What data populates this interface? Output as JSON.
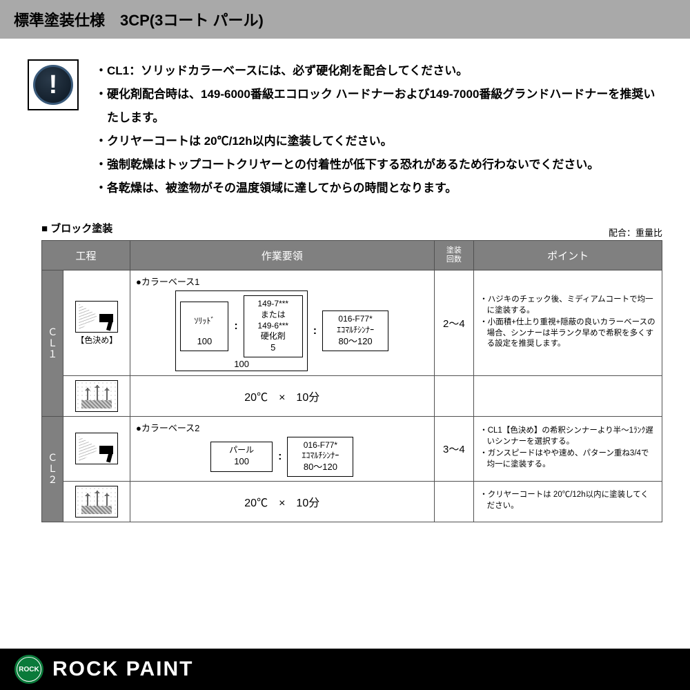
{
  "title": "標準塗装仕様　3CP(3コート パール)",
  "notice_icon_glyph": "!",
  "notices": [
    "・CL1：ソリッドカラーベースには、必ず硬化剤を配合してください。",
    "・硬化剤配合時は、149-6000番級エコロック ハードナーおよび149-7000番級グランドハードナーを推奨いたします。",
    "・クリヤーコートは 20℃/12h以内に塗装してください。",
    "・強制乾燥はトップコートクリヤーとの付着性が低下する恐れがあるため行わないでください。",
    "・各乾燥は、被塗物がその温度領域に達してからの時間となります。"
  ],
  "section_title": "■ ブロック塗装",
  "ratio_note": "配合：重量比",
  "headers": {
    "process": "工程",
    "work": "作業要領",
    "count_l1": "塗装",
    "count_l2": "回数",
    "point": "ポイント"
  },
  "cl1": {
    "label": "ＣＬ１",
    "caption": "【色決め】",
    "mix_title": "●カラーベース1",
    "solid_label": "ｿﾘｯﾄﾞ",
    "solid_val": "100",
    "hardener_l1": "149-7***",
    "hardener_l2": "または",
    "hardener_l3": "149-6***",
    "hardener_l4": "硬化剤",
    "hardener_val": "5",
    "outer_val": "100",
    "thinner_l1": "016-F77*",
    "thinner_l2": "ｴｺﾏﾙﾁｼﾝﾅｰ",
    "thinner_val": "80～120",
    "count": "2～4",
    "points": [
      "ハジキのチェック後、ミディアムコートで均一に塗装する。",
      "小面積+仕上り重視+隠蔽の良いカラーベースの場合、シンナーは半ランク早めで希釈を多くする設定を推奨します。"
    ],
    "dry": "20℃　×　10分"
  },
  "cl2": {
    "label": "ＣＬ２",
    "mix_title": "●カラーベース2",
    "pearl_label": "パール",
    "pearl_val": "100",
    "thinner_l1": "016-F77*",
    "thinner_l2": "ｴｺﾏﾙﾁｼﾝﾅｰ",
    "thinner_val": "80～120",
    "count": "3～4",
    "points_a": [
      "CL1【色決め】の希釈シンナーより半～1ﾗﾝｸ遅いシンナーを選択する。",
      "ガンスピードはやや速め、パターン重ね3/4で均一に塗装する。"
    ],
    "points_b": [
      "クリヤーコートは 20℃/12h以内に塗装してください。"
    ],
    "dry": "20℃　×　10分"
  },
  "footer": {
    "logo_text": "ROCK",
    "brand": "ROCK PAINT"
  }
}
